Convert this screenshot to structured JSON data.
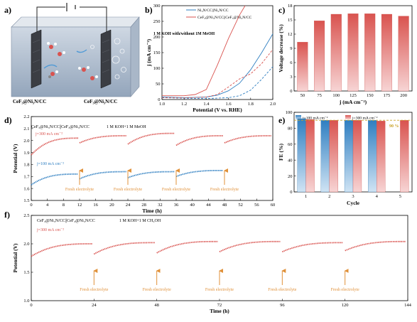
{
  "panels": {
    "a": {
      "label": "a)",
      "electrode_left": "CeF₃@Ni₃N/CC",
      "electrode_right": "CeF₃@Ni₃N/CC"
    },
    "b": {
      "label": "b)",
      "condition": "1 M KOH with/without 1M MeOH"
    },
    "c": {
      "label": "c)"
    },
    "d": {
      "label": "d)",
      "electrodes": "CeF₃@Ni₃N/CC||CeF₃@Ni₃N/CC",
      "condition": "1 M KOH+1 M MeOH",
      "label_300": "j=300 mA cm⁻²",
      "label_100": "j=100 mA cm⁻²",
      "annotation": "Fresh electrolyte"
    },
    "e": {
      "label": "e)",
      "legend_100": "j=100 mA cm⁻²",
      "legend_300": "j=300 mA cm⁻²",
      "annotation": "90 %"
    },
    "f": {
      "label": "f)",
      "electrodes": "CeF₃@Ni₃N/CC||CeF₃@Ni₃N/CC",
      "condition": "1 M KOH+1 M CH₃OH",
      "label_300": "j=300 mA cm⁻²",
      "annotation": "Fresh electrolyte"
    }
  },
  "colors": {
    "red": "#d9534f",
    "blue": "#2f7fc1",
    "bar_red": "#e07a7a",
    "bar_blue": "#4f9ad6"
  },
  "chart_data": [
    {
      "id": "b",
      "type": "line",
      "xlabel": "Potential (V vs. RHE)",
      "ylabel": "j (mA cm⁻²)",
      "xlim": [
        1.0,
        2.0
      ],
      "ylim": [
        0,
        300
      ],
      "xticks": [
        "1.0",
        "1.2",
        "1.4",
        "1.6",
        "1.8",
        "2.0"
      ],
      "yticks": [
        "0",
        "50",
        "100",
        "150",
        "200",
        "250",
        "300"
      ],
      "legend": [
        "Ni₃N/CC||Ni₃N/CC",
        "CeF₃@Ni₃N/CC||CeF₃@Ni₃N/CC"
      ],
      "series": [
        {
          "color": "blue",
          "dash": false,
          "x": [
            1.0,
            1.2,
            1.4,
            1.5,
            1.6,
            1.7,
            1.8,
            1.9,
            2.0
          ],
          "y": [
            8,
            6,
            8,
            14,
            28,
            52,
            95,
            150,
            210
          ]
        },
        {
          "color": "blue",
          "dash": true,
          "x": [
            1.0,
            1.2,
            1.4,
            1.6,
            1.7,
            1.8,
            1.9,
            2.0
          ],
          "y": [
            6,
            4,
            3,
            6,
            12,
            30,
            65,
            105
          ]
        },
        {
          "color": "red",
          "dash": false,
          "x": [
            1.0,
            1.2,
            1.3,
            1.4,
            1.5,
            1.6,
            1.7,
            1.75
          ],
          "y": [
            12,
            12,
            16,
            32,
            110,
            195,
            270,
            300
          ]
        },
        {
          "color": "red",
          "dash": true,
          "x": [
            1.0,
            1.2,
            1.4,
            1.5,
            1.6,
            1.7,
            1.8,
            1.9,
            2.0
          ],
          "y": [
            6,
            5,
            8,
            16,
            40,
            66,
            82,
            115,
            160
          ]
        }
      ]
    },
    {
      "id": "c",
      "type": "bar",
      "xlabel": "j (mA cm⁻²)",
      "ylabel": "Voltage decrease (%)",
      "categories": [
        "50",
        "75",
        "100",
        "125",
        "150",
        "175",
        "200"
      ],
      "values": [
        10.3,
        14.8,
        16.2,
        16.3,
        16.3,
        16.2,
        15.8
      ],
      "ylim": [
        0,
        18
      ],
      "yticks": [
        "0",
        "3",
        "6",
        "9",
        "12",
        "15",
        "18"
      ]
    },
    {
      "id": "d",
      "type": "line",
      "xlabel": "Time (h)",
      "ylabel": "Potential (V)",
      "xlim": [
        0,
        60
      ],
      "ylim": [
        1.5,
        2.2
      ],
      "xticks": [
        "0",
        "4",
        "8",
        "12",
        "16",
        "20",
        "24",
        "28",
        "32",
        "36",
        "40",
        "44",
        "48",
        "52",
        "56",
        "60"
      ],
      "yticks": [
        "1.5",
        "1.6",
        "1.7",
        "1.8",
        "1.9",
        "2.0",
        "2.1",
        "2.2"
      ],
      "arrows_x": [
        12,
        24,
        36,
        48
      ],
      "series": [
        {
          "color": "red",
          "segments": [
            [
              0,
              12,
              1.88,
              2.02
            ],
            [
              12,
              24,
              1.98,
              2.04
            ],
            [
              24,
              36,
              1.97,
              2.06
            ],
            [
              36,
              48,
              1.96,
              2.04
            ],
            [
              48,
              60,
              1.98,
              2.04
            ]
          ]
        },
        {
          "color": "blue",
          "segments": [
            [
              0,
              12,
              1.63,
              1.72
            ],
            [
              12,
              24,
              1.68,
              1.74
            ],
            [
              24,
              36,
              1.69,
              1.74
            ],
            [
              36,
              48,
              1.7,
              1.75
            ]
          ]
        }
      ]
    },
    {
      "id": "e",
      "type": "bar",
      "xlabel": "Cycle",
      "ylabel": "FE (%)",
      "categories": [
        "1",
        "2",
        "3",
        "4",
        "5"
      ],
      "series": [
        {
          "name": "j=100 mA cm⁻²",
          "color": "blue",
          "values": [
            92,
            90,
            90,
            90,
            null
          ]
        },
        {
          "name": "j=300 mA cm⁻²",
          "color": "red",
          "values": [
            91,
            90,
            90,
            89,
            90
          ]
        }
      ],
      "ylim": [
        0,
        100
      ],
      "yticks": [
        "0",
        "20",
        "40",
        "60",
        "80",
        "100"
      ]
    },
    {
      "id": "f",
      "type": "line",
      "xlabel": "Time (h)",
      "ylabel": "Potential (V)",
      "xlim": [
        0,
        144
      ],
      "ylim": [
        1.0,
        2.5
      ],
      "xticks": [
        "0",
        "24",
        "48",
        "72",
        "96",
        "120",
        "144"
      ],
      "yticks": [
        "1.0",
        "1.5",
        "2.0",
        "2.5"
      ],
      "arrows_x": [
        24,
        48,
        72,
        96,
        120
      ],
      "series": [
        {
          "color": "red",
          "segments": [
            [
              0,
              24,
              1.78,
              2.0
            ],
            [
              24,
              48,
              1.82,
              2.02
            ],
            [
              48,
              72,
              1.84,
              2.04
            ],
            [
              72,
              96,
              1.86,
              2.04
            ],
            [
              96,
              120,
              1.86,
              2.02
            ],
            [
              120,
              144,
              1.88,
              2.04
            ]
          ]
        }
      ]
    }
  ]
}
